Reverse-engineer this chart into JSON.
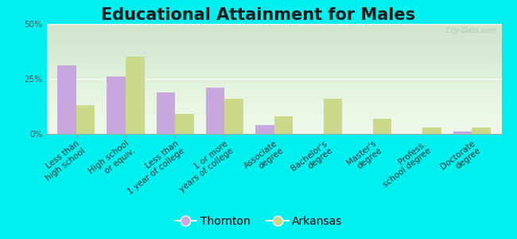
{
  "title": "Educational Attainment for Males",
  "categories": [
    "Less than\nhigh school",
    "High school\nor equiv.",
    "Less than\n1 year of college",
    "1 or more\nyears of college",
    "Associate\ndegree",
    "Bachelor's\ndegree",
    "Master's\ndegree",
    "Profess.\nschool degree",
    "Doctorate\ndegree"
  ],
  "thornton_values": [
    31,
    26,
    19,
    21,
    4,
    0,
    0,
    0,
    1
  ],
  "arkansas_values": [
    13,
    35,
    9,
    16,
    8,
    16,
    7,
    3,
    3
  ],
  "thornton_color": "#c9a8df",
  "arkansas_color": "#ccd98a",
  "background_color": "#00efef",
  "plot_bg_color": "#eef8e8",
  "ylim": [
    0,
    50
  ],
  "yticks": [
    0,
    25,
    50
  ],
  "ytick_labels": [
    "0%",
    "25%",
    "50%"
  ],
  "title_fontsize": 15,
  "tick_fontsize": 7.5,
  "legend_fontsize": 10,
  "bar_width": 0.38,
  "watermark": "City-Data.com"
}
